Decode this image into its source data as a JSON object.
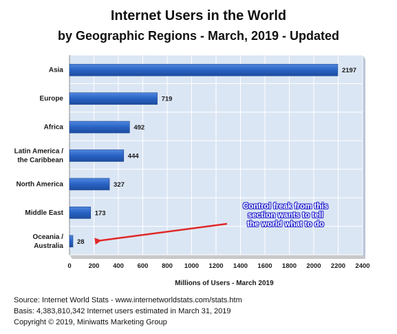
{
  "chart_data": {
    "type": "bar",
    "orientation": "horizontal",
    "title": "Internet Users in the World",
    "subtitle": "by Geographic Regions -  March, 2019 - Updated",
    "categories": [
      [
        "Asia"
      ],
      [
        "Europe"
      ],
      [
        "Africa"
      ],
      [
        "Latin America /",
        "the Caribbean"
      ],
      [
        "North America"
      ],
      [
        "Middle East"
      ],
      [
        "Oceania  /",
        "Australia"
      ]
    ],
    "values": [
      2197,
      719,
      492,
      444,
      327,
      173,
      28
    ],
    "value_labels": [
      "2197",
      "719",
      "492",
      "444",
      "327",
      "173",
      "28"
    ],
    "xlabel": "Millions of Users - March 2019",
    "ylabel": "",
    "xlim": [
      0,
      2400
    ],
    "xticks": [
      0,
      200,
      400,
      600,
      800,
      1000,
      1200,
      1400,
      1600,
      1800,
      2000,
      2200,
      2400
    ],
    "grid": true,
    "legend": "none",
    "annotation": {
      "text": [
        "Control freak from this",
        "section wants to tell",
        "the world what to do"
      ],
      "points_to": "Oceania  /"
    },
    "colors": {
      "bar": "#2962c4",
      "plot_bg": "#dbe6f4",
      "grid": "#ffffff",
      "arrow": "#e02828",
      "callout_outline": "#2a2ad0"
    }
  },
  "footer": {
    "source": "Source: Internet World Stats - www.internetworldstats.com/stats.htm",
    "basis": "Basis: 4,383,810,342 Internet users estimated in March 31, 2019",
    "copyright": "Copyright © 2019, Miniwatts Marketing Group"
  }
}
